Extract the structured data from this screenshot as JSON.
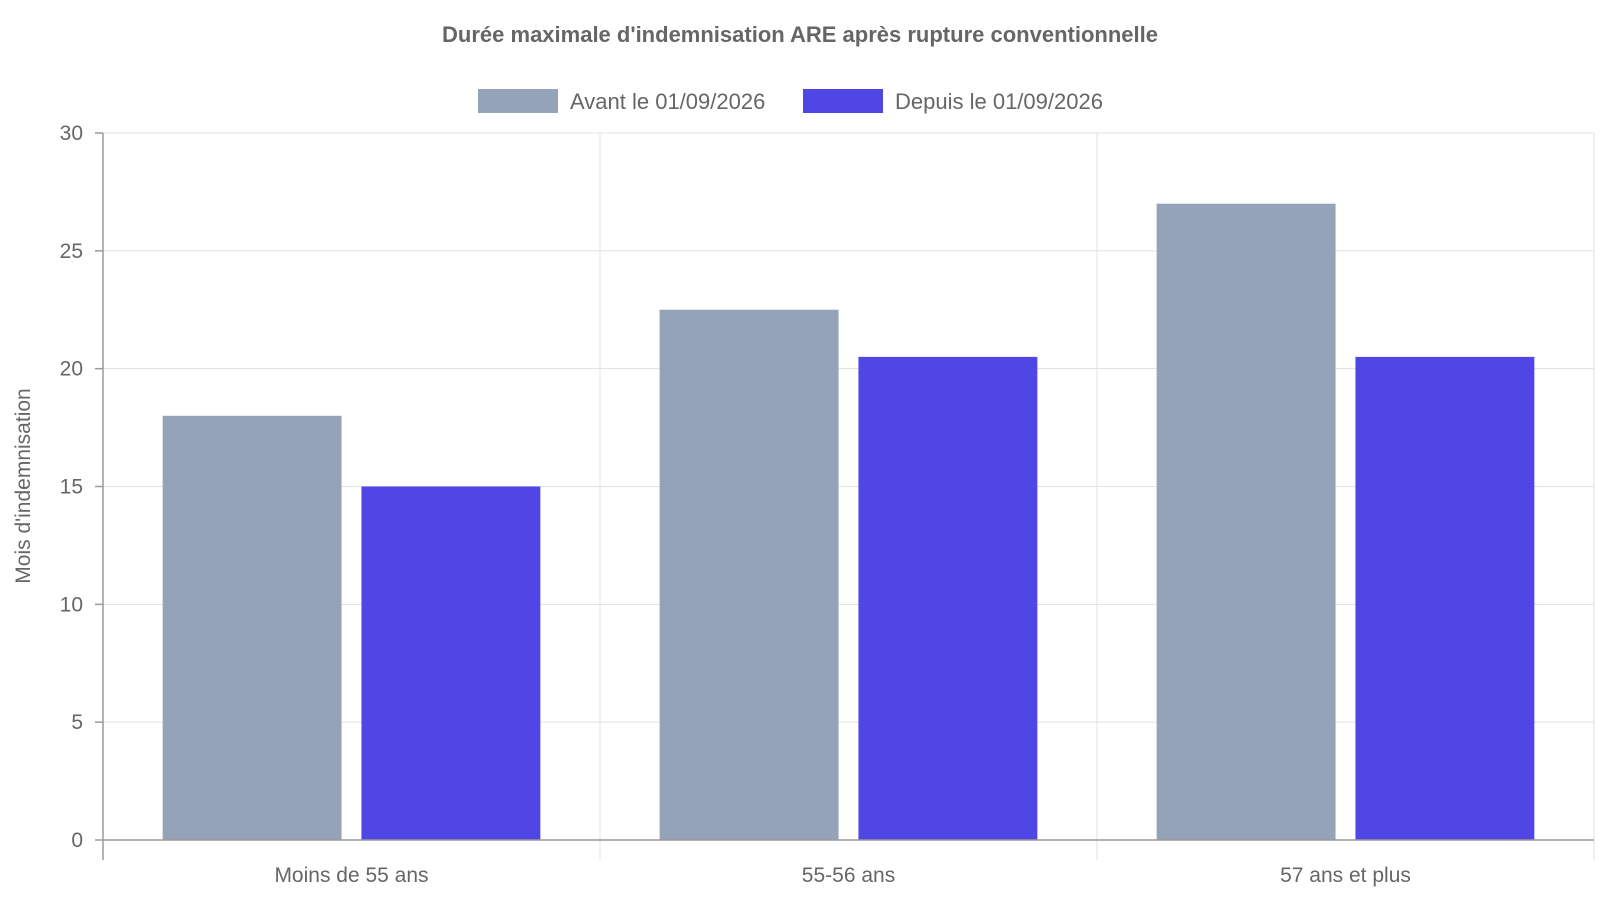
{
  "chart_data": {
    "type": "bar",
    "title": "Durée maximale d'indemnisation ARE après rupture conventionnelle",
    "xlabel": "",
    "ylabel": "Mois d'indemnisation",
    "categories": [
      "Moins de 55 ans",
      "55-56 ans",
      "57 ans et plus"
    ],
    "series": [
      {
        "name": "Avant le 01/09/2026",
        "values": [
          18,
          22.5,
          27
        ],
        "color": "#94a3b8"
      },
      {
        "name": "Depuis le 01/09/2026",
        "values": [
          15,
          20.5,
          20.5
        ],
        "color": "#4f46e5"
      }
    ],
    "ylim": [
      0,
      30
    ],
    "yticks": [
      0,
      5,
      10,
      15,
      20,
      25,
      30
    ],
    "grid": true,
    "legend": "top-center"
  }
}
